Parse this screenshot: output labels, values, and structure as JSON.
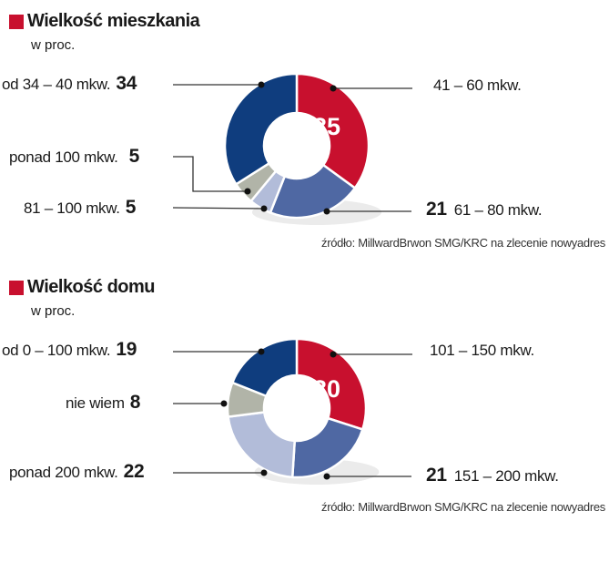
{
  "colors": {
    "accent": "#c8102e",
    "dark_blue": "#0f3d7e",
    "mid_blue": "#4f68a3",
    "light_blue": "#b2bcd9",
    "gray": "#b1b4a8"
  },
  "chart_data": [
    {
      "type": "pie",
      "title": "Wielkość mieszkania",
      "subtitle": "w proc.",
      "slices": [
        {
          "label": "41 – 60 mkw.",
          "value": 35,
          "color": "#c8102e"
        },
        {
          "label": "61 – 80 mkw.",
          "value": 21,
          "color": "#4f68a3"
        },
        {
          "label": "81 – 100 mkw.",
          "value": 5,
          "color": "#b2bcd9"
        },
        {
          "label": "ponad 100 mkw.",
          "value": 5,
          "color": "#b1b4a8"
        },
        {
          "label": "od 34 – 40 mkw.",
          "value": 34,
          "color": "#0f3d7e"
        }
      ],
      "source": "źródło: MillwardBrwon SMG/KRC na zlecenie nowyadres"
    },
    {
      "type": "pie",
      "title": "Wielkość domu",
      "subtitle": "w proc.",
      "slices": [
        {
          "label": "101 – 150 mkw.",
          "value": 30,
          "color": "#c8102e"
        },
        {
          "label": "151 – 200 mkw.",
          "value": 21,
          "color": "#4f68a3"
        },
        {
          "label": "ponad 200 mkw.",
          "value": 22,
          "color": "#b2bcd9"
        },
        {
          "label": "nie wiem",
          "value": 8,
          "color": "#b1b4a8"
        },
        {
          "label": "od 0 – 100 mkw.",
          "value": 19,
          "color": "#0f3d7e"
        }
      ],
      "source": "źródło: MillwardBrwon SMG/KRC na zlecenie nowyadres"
    }
  ]
}
